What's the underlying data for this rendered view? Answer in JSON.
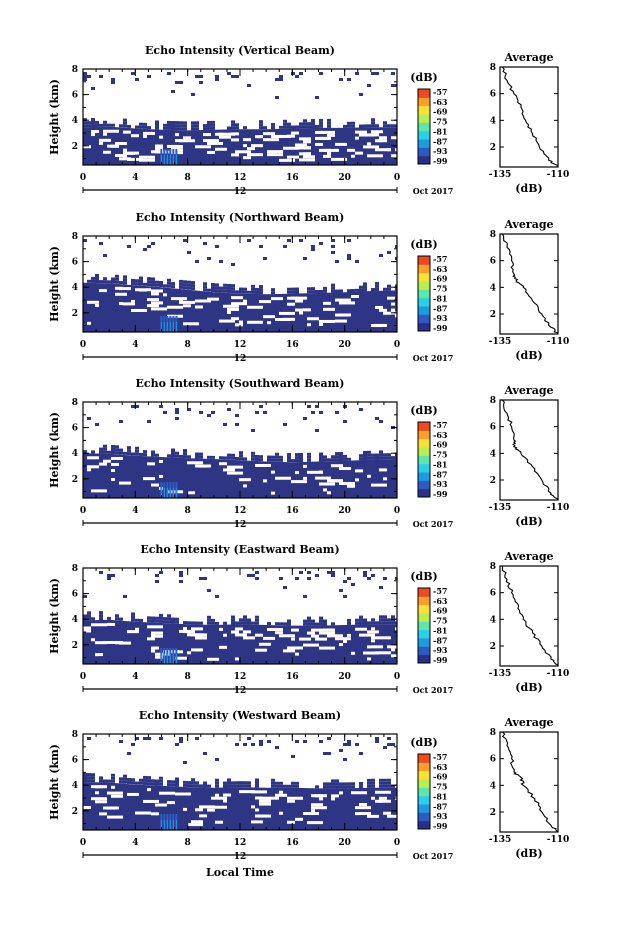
{
  "figure": {
    "xlabel": "Local Time",
    "date_label": "Oct 2017",
    "day_label": "12",
    "colorbar_unit": "(dB)",
    "colorbar_ticks": [
      "-57",
      "-63",
      "-69",
      "-75",
      "-81",
      "-87",
      "-93",
      "-99"
    ],
    "x_ticks": [
      "0",
      "4",
      "8",
      "12",
      "16",
      "20",
      "0"
    ],
    "y_ticks": [
      "2",
      "4",
      "6",
      "8"
    ],
    "ylabel": "Height (km)",
    "avg_title": "Average",
    "avg_xlabel": "(dB)",
    "avg_x_ticks": [
      "-135",
      "-110"
    ],
    "colors": {
      "fill": "#2e3585",
      "colormap": [
        "#2b2f8a",
        "#2c5bc4",
        "#1f9ae0",
        "#29d0e8",
        "#5fe6a8",
        "#b8ee52",
        "#f6e236",
        "#f8a02a",
        "#ee4a22"
      ]
    }
  },
  "chart_data": [
    {
      "type": "heatmap",
      "title": "Echo Intensity (Vertical Beam)",
      "xlim": [
        0,
        24
      ],
      "ylim": [
        0.5,
        8
      ],
      "boundary_km": [
        3.45,
        3.5,
        3.35,
        3.25,
        3.2,
        3.25,
        3.3,
        3.3,
        3.35,
        3.4,
        3.4,
        3.45,
        3.45
      ],
      "sparse_fraction": 0.4,
      "colorbar_range": [
        -99,
        -57
      ],
      "average_profile": {
        "xlim": [
          -135,
          -110
        ],
        "ylim": [
          0.5,
          8
        ],
        "height_km": [
          8.0,
          7.0,
          6.0,
          5.0,
          4.0,
          3.0,
          2.0,
          1.0,
          0.5
        ],
        "value_db": [
          -134,
          -132,
          -129,
          -126,
          -124,
          -121,
          -118,
          -114,
          -110
        ]
      }
    },
    {
      "type": "heatmap",
      "title": "Echo Intensity (Northward Beam)",
      "xlim": [
        0,
        24
      ],
      "ylim": [
        0.5,
        8
      ],
      "boundary_km": [
        4.35,
        4.3,
        4.15,
        4.0,
        3.8,
        3.6,
        3.5,
        3.45,
        3.5,
        3.55,
        3.6,
        3.7,
        3.75
      ],
      "sparse_fraction": 0.25,
      "colorbar_range": [
        -99,
        -57
      ],
      "average_profile": {
        "xlim": [
          -135,
          -110
        ],
        "ylim": [
          0.5,
          8
        ],
        "height_km": [
          8.0,
          7.0,
          6.0,
          5.0,
          4.5,
          4.0,
          3.0,
          2.0,
          1.0,
          0.5
        ],
        "value_db": [
          -134,
          -132,
          -130,
          -129,
          -128,
          -125,
          -121,
          -117,
          -113,
          -110
        ]
      }
    },
    {
      "type": "heatmap",
      "title": "Echo Intensity (Southward Beam)",
      "xlim": [
        0,
        24
      ],
      "ylim": [
        0.5,
        8
      ],
      "boundary_km": [
        4.0,
        3.95,
        3.8,
        3.7,
        3.6,
        3.55,
        3.45,
        3.35,
        3.3,
        3.35,
        3.4,
        3.5,
        3.55
      ],
      "sparse_fraction": 0.2,
      "colorbar_range": [
        -99,
        -57
      ],
      "average_profile": {
        "xlim": [
          -135,
          -110
        ],
        "ylim": [
          0.5,
          8
        ],
        "height_km": [
          8.0,
          7.0,
          6.0,
          5.0,
          4.5,
          4.0,
          3.0,
          2.0,
          1.0,
          0.5
        ],
        "value_db": [
          -134,
          -132,
          -130,
          -129,
          -129,
          -126,
          -121,
          -117,
          -113,
          -110
        ]
      }
    },
    {
      "type": "heatmap",
      "title": "Echo Intensity (Eastward Beam)",
      "xlim": [
        0,
        24
      ],
      "ylim": [
        0.5,
        8
      ],
      "boundary_km": [
        3.9,
        3.95,
        3.8,
        3.7,
        3.6,
        3.55,
        3.6,
        3.55,
        3.5,
        3.5,
        3.55,
        3.6,
        3.6
      ],
      "sparse_fraction": 0.3,
      "colorbar_range": [
        -99,
        -57
      ],
      "average_profile": {
        "xlim": [
          -135,
          -110
        ],
        "ylim": [
          0.5,
          8
        ],
        "height_km": [
          8.0,
          7.0,
          6.0,
          5.0,
          4.0,
          3.0,
          2.0,
          1.0,
          0.5
        ],
        "value_db": [
          -134,
          -132,
          -130,
          -127,
          -125,
          -121,
          -117,
          -113,
          -110
        ]
      }
    },
    {
      "type": "heatmap",
      "title": "Echo Intensity (Westward Beam)",
      "xlim": [
        0,
        24
      ],
      "ylim": [
        0.5,
        8
      ],
      "boundary_km": [
        4.25,
        4.2,
        4.05,
        3.95,
        3.85,
        3.8,
        3.85,
        3.8,
        3.8,
        3.75,
        3.75,
        3.8,
        3.8
      ],
      "sparse_fraction": 0.25,
      "colorbar_range": [
        -99,
        -57
      ],
      "average_profile": {
        "xlim": [
          -135,
          -110
        ],
        "ylim": [
          0.5,
          8
        ],
        "height_km": [
          8.0,
          7.0,
          6.0,
          5.0,
          4.6,
          4.0,
          3.0,
          2.0,
          1.0,
          0.5
        ],
        "value_db": [
          -134,
          -132,
          -130,
          -129,
          -126,
          -125,
          -120,
          -117,
          -113,
          -110
        ]
      }
    }
  ]
}
